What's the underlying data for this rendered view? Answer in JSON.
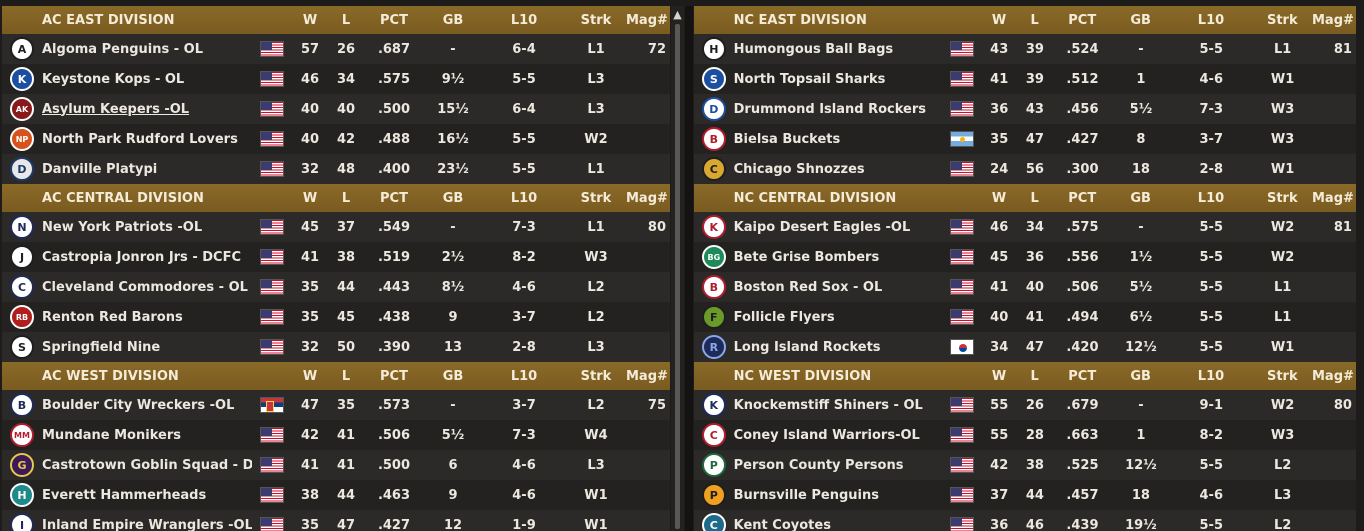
{
  "columns": {
    "w": "W",
    "l": "L",
    "pct": "PCT",
    "gb": "GB",
    "l10": "L10",
    "strk": "Strk",
    "mag": "Mag#"
  },
  "colors": {
    "header_gold": "#8a6a28",
    "row_odd": "#2c2a28",
    "row_even": "#242220"
  },
  "left_divisions": [
    {
      "title": "AC EAST DIVISION",
      "teams": [
        {
          "name": "Algoma Penguins - OL",
          "logo": "A",
          "logo_icon": "penguin-logo-icon",
          "logo_color": "#1e1e1e",
          "logo_bg": "#ffffff",
          "flag": "us",
          "w": "57",
          "l": "26",
          "pct": ".687",
          "gb": "-",
          "l10": "6-4",
          "strk": "L1",
          "mag": "72"
        },
        {
          "name": "Keystone Kops - OL",
          "logo": "K",
          "logo_icon": "kops-logo-icon",
          "logo_color": "#ffffff",
          "logo_bg": "#1c4fa0",
          "flag": "us",
          "w": "46",
          "l": "34",
          "pct": ".575",
          "gb": "9½",
          "l10": "5-5",
          "strk": "L3",
          "mag": ""
        },
        {
          "name": "Asylum Keepers -OL",
          "logo": "AK",
          "logo_icon": "keepers-logo-icon",
          "logo_color": "#ffffff",
          "logo_bg": "#8a1a1a",
          "flag": "us",
          "w": "40",
          "l": "40",
          "pct": ".500",
          "gb": "15½",
          "l10": "6-4",
          "strk": "L3",
          "mag": "",
          "link": true
        },
        {
          "name": "North Park Rudford Lovers",
          "logo": "NP",
          "logo_icon": "lovers-logo-icon",
          "logo_color": "#ffffff",
          "logo_bg": "#d8531c",
          "flag": "us",
          "w": "40",
          "l": "42",
          "pct": ".488",
          "gb": "16½",
          "l10": "5-5",
          "strk": "W2",
          "mag": ""
        },
        {
          "name": "Danville Platypi",
          "logo": "D",
          "logo_icon": "platypi-logo-icon",
          "logo_color": "#1e3a6a",
          "logo_bg": "#e8e8e8",
          "flag": "us",
          "w": "32",
          "l": "48",
          "pct": ".400",
          "gb": "23½",
          "l10": "5-5",
          "strk": "L1",
          "mag": ""
        }
      ]
    },
    {
      "title": "AC CENTRAL DIVISION",
      "teams": [
        {
          "name": "New York Patriots -OL",
          "logo": "N",
          "logo_icon": "patriots-logo-icon",
          "logo_color": "#1e2a5a",
          "logo_bg": "#ffffff",
          "flag": "us",
          "w": "45",
          "l": "37",
          "pct": ".549",
          "gb": "-",
          "l10": "7-3",
          "strk": "L1",
          "mag": "80"
        },
        {
          "name": "Castropia Jonron Jrs - DCFC",
          "logo": "J",
          "logo_icon": "jonron-logo-icon",
          "logo_color": "#1e1e1e",
          "logo_bg": "#ffffff",
          "flag": "us",
          "w": "41",
          "l": "38",
          "pct": ".519",
          "gb": "2½",
          "l10": "8-2",
          "strk": "W3",
          "mag": ""
        },
        {
          "name": "Cleveland Commodores - OL",
          "logo": "C",
          "logo_icon": "commodores-logo-icon",
          "logo_color": "#1e2a5a",
          "logo_bg": "#ffffff",
          "flag": "us",
          "w": "35",
          "l": "44",
          "pct": ".443",
          "gb": "8½",
          "l10": "4-6",
          "strk": "L2",
          "mag": ""
        },
        {
          "name": "Renton Red Barons",
          "logo": "RB",
          "logo_icon": "red-barons-logo-icon",
          "logo_color": "#ffffff",
          "logo_bg": "#b01e1e",
          "flag": "us",
          "w": "35",
          "l": "45",
          "pct": ".438",
          "gb": "9",
          "l10": "3-7",
          "strk": "L2",
          "mag": ""
        },
        {
          "name": "Springfield Nine",
          "logo": "S",
          "logo_icon": "nine-logo-icon",
          "logo_color": "#1e1e1e",
          "logo_bg": "#ffffff",
          "flag": "us",
          "w": "32",
          "l": "50",
          "pct": ".390",
          "gb": "13",
          "l10": "2-8",
          "strk": "L3",
          "mag": ""
        }
      ]
    },
    {
      "title": "AC WEST DIVISION",
      "teams": [
        {
          "name": "Boulder City Wreckers -OL",
          "logo": "B",
          "logo_icon": "wreckers-logo-icon",
          "logo_color": "#1e2a5a",
          "logo_bg": "#ffffff",
          "flag": "rs",
          "w": "47",
          "l": "35",
          "pct": ".573",
          "gb": "-",
          "l10": "3-7",
          "strk": "L2",
          "mag": "75"
        },
        {
          "name": "Mundane Monikers",
          "logo": "MM",
          "logo_icon": "monikers-logo-icon",
          "logo_color": "#b01e2e",
          "logo_bg": "#ffffff",
          "flag": "us",
          "w": "42",
          "l": "41",
          "pct": ".506",
          "gb": "5½",
          "l10": "7-3",
          "strk": "W4",
          "mag": ""
        },
        {
          "name": "Castrotown Goblin Squad - DCFC",
          "logo": "G",
          "logo_icon": "goblin-logo-icon",
          "logo_color": "#e8c84a",
          "logo_bg": "#3a1a5a",
          "flag": "us",
          "w": "41",
          "l": "41",
          "pct": ".500",
          "gb": "6",
          "l10": "4-6",
          "strk": "L3",
          "mag": ""
        },
        {
          "name": "Everett Hammerheads",
          "logo": "H",
          "logo_icon": "hammerhead-logo-icon",
          "logo_color": "#ffffff",
          "logo_bg": "#1e8a8a",
          "flag": "us",
          "w": "38",
          "l": "44",
          "pct": ".463",
          "gb": "9",
          "l10": "4-6",
          "strk": "W1",
          "mag": ""
        },
        {
          "name": "Inland Empire Wranglers -OL",
          "logo": "I",
          "logo_icon": "wranglers-logo-icon",
          "logo_color": "#1e2a5a",
          "logo_bg": "#ffffff",
          "flag": "us",
          "w": "35",
          "l": "47",
          "pct": ".427",
          "gb": "12",
          "l10": "1-9",
          "strk": "W1",
          "mag": ""
        }
      ]
    }
  ],
  "right_divisions": [
    {
      "title": "NC EAST DIVISION",
      "teams": [
        {
          "name": "Humongous Ball Bags",
          "logo": "H",
          "logo_icon": "ball-bags-logo-icon",
          "logo_color": "#1e1e1e",
          "logo_bg": "#ffffff",
          "flag": "us",
          "w": "43",
          "l": "39",
          "pct": ".524",
          "gb": "-",
          "l10": "5-5",
          "strk": "L1",
          "mag": "81"
        },
        {
          "name": "North Topsail Sharks",
          "logo": "S",
          "logo_icon": "sharks-logo-icon",
          "logo_color": "#ffffff",
          "logo_bg": "#1c4fa0",
          "flag": "us",
          "w": "41",
          "l": "39",
          "pct": ".512",
          "gb": "1",
          "l10": "4-6",
          "strk": "W1",
          "mag": ""
        },
        {
          "name": "Drummond Island Rockers",
          "logo": "D",
          "logo_icon": "rockers-logo-icon",
          "logo_color": "#1c4fa0",
          "logo_bg": "#ffffff",
          "flag": "us",
          "w": "36",
          "l": "43",
          "pct": ".456",
          "gb": "5½",
          "l10": "7-3",
          "strk": "W3",
          "mag": ""
        },
        {
          "name": "Bielsa Buckets",
          "logo": "B",
          "logo_icon": "buckets-logo-icon",
          "logo_color": "#b01e2e",
          "logo_bg": "#ffffff",
          "flag": "ar",
          "w": "35",
          "l": "47",
          "pct": ".427",
          "gb": "8",
          "l10": "3-7",
          "strk": "W3",
          "mag": ""
        },
        {
          "name": "Chicago Shnozzes",
          "logo": "C",
          "logo_icon": "shnozzes-logo-icon",
          "logo_color": "#1e1e1e",
          "logo_bg": "#d8a830",
          "flag": "us",
          "w": "24",
          "l": "56",
          "pct": ".300",
          "gb": "18",
          "l10": "2-8",
          "strk": "W1",
          "mag": ""
        }
      ]
    },
    {
      "title": "NC CENTRAL DIVISION",
      "teams": [
        {
          "name": "Kaipo Desert Eagles -OL",
          "logo": "K",
          "logo_icon": "desert-eagles-logo-icon",
          "logo_color": "#b01e2e",
          "logo_bg": "#ffffff",
          "flag": "us",
          "w": "46",
          "l": "34",
          "pct": ".575",
          "gb": "-",
          "l10": "5-5",
          "strk": "W2",
          "mag": "81"
        },
        {
          "name": "Bete Grise Bombers",
          "logo": "BG",
          "logo_icon": "bombers-logo-icon",
          "logo_color": "#ffffff",
          "logo_bg": "#1e8a5a",
          "flag": "us",
          "w": "45",
          "l": "36",
          "pct": ".556",
          "gb": "1½",
          "l10": "5-5",
          "strk": "W2",
          "mag": ""
        },
        {
          "name": "Boston Red Sox - OL",
          "logo": "B",
          "logo_icon": "red-sox-logo-icon",
          "logo_color": "#b01e2e",
          "logo_bg": "#ffffff",
          "flag": "us",
          "w": "41",
          "l": "40",
          "pct": ".506",
          "gb": "5½",
          "l10": "5-5",
          "strk": "L1",
          "mag": ""
        },
        {
          "name": "Follicle Flyers",
          "logo": "F",
          "logo_icon": "flyers-logo-icon",
          "logo_color": "#1e1e1e",
          "logo_bg": "#6a9a2a",
          "flag": "us",
          "w": "40",
          "l": "41",
          "pct": ".494",
          "gb": "6½",
          "l10": "5-5",
          "strk": "L1",
          "mag": ""
        },
        {
          "name": "Long Island Rockets",
          "logo": "R",
          "logo_icon": "rockets-logo-icon",
          "logo_color": "#8aa8e8",
          "logo_bg": "#1e2a5a",
          "flag": "kr",
          "w": "34",
          "l": "47",
          "pct": ".420",
          "gb": "12½",
          "l10": "5-5",
          "strk": "W1",
          "mag": ""
        }
      ]
    },
    {
      "title": "NC WEST DIVISION",
      "teams": [
        {
          "name": "Knockemstiff Shiners - OL",
          "logo": "K",
          "logo_icon": "shiners-logo-icon",
          "logo_color": "#1e2a5a",
          "logo_bg": "#ffffff",
          "flag": "us",
          "w": "55",
          "l": "26",
          "pct": ".679",
          "gb": "-",
          "l10": "9-1",
          "strk": "W2",
          "mag": "80"
        },
        {
          "name": "Coney Island Warriors-OL",
          "logo": "C",
          "logo_icon": "warriors-logo-icon",
          "logo_color": "#b01e2e",
          "logo_bg": "#ffffff",
          "flag": "us",
          "w": "55",
          "l": "28",
          "pct": ".663",
          "gb": "1",
          "l10": "8-2",
          "strk": "W3",
          "mag": ""
        },
        {
          "name": "Person County Persons",
          "logo": "P",
          "logo_icon": "persons-logo-icon",
          "logo_color": "#1e6a3a",
          "logo_bg": "#ffffff",
          "flag": "us",
          "w": "42",
          "l": "38",
          "pct": ".525",
          "gb": "12½",
          "l10": "5-5",
          "strk": "L2",
          "mag": ""
        },
        {
          "name": "Burnsville Penguins",
          "logo": "P",
          "logo_icon": "burnsville-penguins-logo-icon",
          "logo_color": "#1e1e1e",
          "logo_bg": "#f0a020",
          "flag": "us",
          "w": "37",
          "l": "44",
          "pct": ".457",
          "gb": "18",
          "l10": "4-6",
          "strk": "L3",
          "mag": ""
        },
        {
          "name": "Kent Coyotes",
          "logo": "C",
          "logo_icon": "coyotes-logo-icon",
          "logo_color": "#ffffff",
          "logo_bg": "#1e6a8a",
          "flag": "us",
          "w": "36",
          "l": "46",
          "pct": ".439",
          "gb": "19½",
          "l10": "5-5",
          "strk": "L2",
          "mag": ""
        }
      ]
    }
  ]
}
